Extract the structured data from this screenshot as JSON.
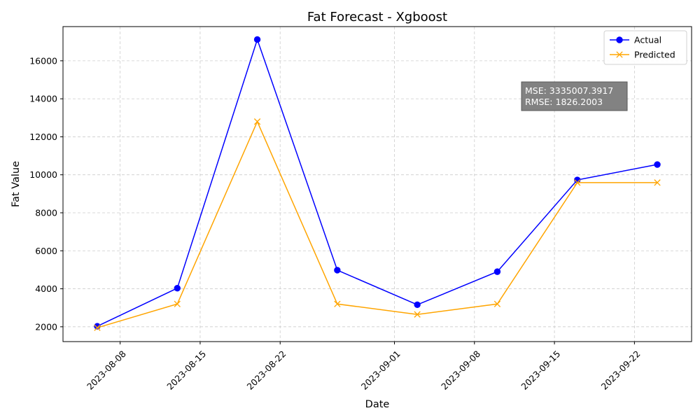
{
  "chart_data": {
    "type": "line",
    "title": "Fat Forecast - Xgboost",
    "xlabel": "Date",
    "ylabel": "Fat Value",
    "x": [
      "2023-08-06",
      "2023-08-13",
      "2023-08-20",
      "2023-08-27",
      "2023-09-03",
      "2023-09-10",
      "2023-09-17",
      "2023-09-24"
    ],
    "series": [
      {
        "name": "Actual",
        "color": "#0000ff",
        "marker": "circle",
        "values": [
          2030,
          4030,
          17120,
          4980,
          3160,
          4900,
          9730,
          10540
        ]
      },
      {
        "name": "Predicted",
        "color": "#ffa500",
        "marker": "x",
        "values": [
          1950,
          3200,
          12800,
          3200,
          2650,
          3200,
          9590,
          9590
        ]
      }
    ],
    "xlim": [
      "2023-08-03",
      "2023-09-27"
    ],
    "ylim": [
      1220,
      17800
    ],
    "yticks": [
      2000,
      4000,
      6000,
      8000,
      10000,
      12000,
      14000,
      16000
    ],
    "xticks": [
      "2023-08-08",
      "2023-08-15",
      "2023-08-22",
      "2023-09-01",
      "2023-09-08",
      "2023-09-15",
      "2023-09-22"
    ],
    "grid": true,
    "legend_position": "top-right",
    "annotation": {
      "lines": [
        "MSE: 3335007.3917",
        "RMSE: 1826.2003"
      ],
      "background": "#808080"
    }
  }
}
